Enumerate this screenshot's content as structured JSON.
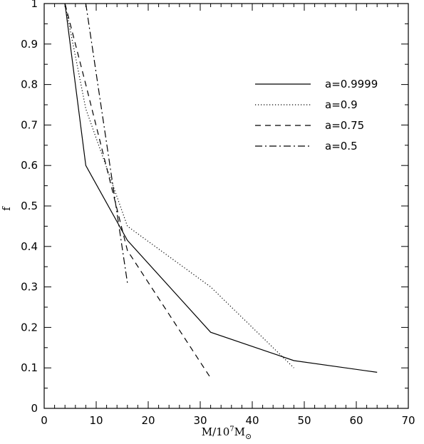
{
  "chart_data": {
    "type": "line",
    "xlabel_parts": {
      "base": "M/10",
      "exp": "7",
      "mid": "M",
      "sub": "⊙"
    },
    "ylabel": "f",
    "xlim": [
      0,
      70
    ],
    "ylim": [
      0,
      1
    ],
    "x_ticks": [
      "0",
      "10",
      "20",
      "30",
      "40",
      "50",
      "60",
      "70"
    ],
    "y_ticks": [
      "0",
      "0.1",
      "0.2",
      "0.3",
      "0.4",
      "0.5",
      "0.6",
      "0.7",
      "0.8",
      "0.9",
      "1"
    ],
    "grid": false,
    "legend_position": "top-right",
    "series": [
      {
        "name": "a=0.9999",
        "dash": "solid",
        "points": [
          [
            4,
            1.0
          ],
          [
            8,
            0.6
          ],
          [
            16,
            0.415
          ],
          [
            32,
            0.188
          ],
          [
            48,
            0.118
          ],
          [
            64,
            0.089
          ]
        ]
      },
      {
        "name": "a=0.9",
        "dash": "dotted",
        "points": [
          [
            4,
            1.0
          ],
          [
            8,
            0.74
          ],
          [
            16,
            0.45
          ],
          [
            32,
            0.3
          ],
          [
            48,
            0.1
          ]
        ]
      },
      {
        "name": "a=0.75",
        "dash": "dashed",
        "points": [
          [
            4,
            1.0
          ],
          [
            8,
            0.8
          ],
          [
            16,
            0.39
          ],
          [
            32,
            0.075
          ]
        ]
      },
      {
        "name": "a=0.5",
        "dash": "dashdot",
        "points": [
          [
            8,
            1.0
          ],
          [
            16,
            0.31
          ]
        ]
      }
    ]
  }
}
